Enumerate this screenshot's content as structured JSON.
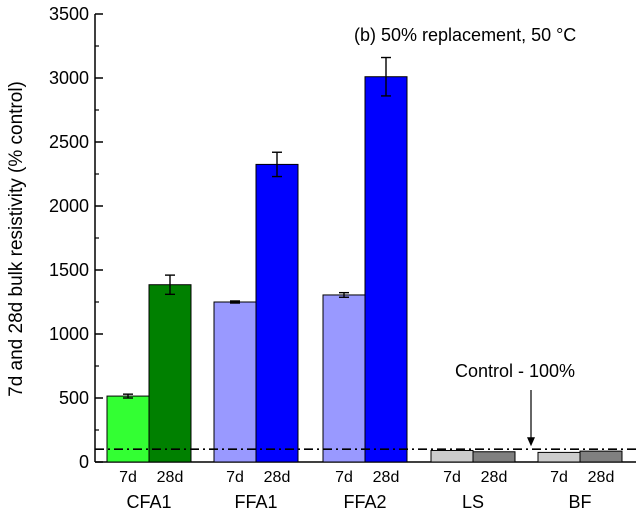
{
  "chart_data": {
    "type": "bar",
    "annotation_panel": "(b) 50% replacement, 50 °C",
    "ylabel": "7d and 28d bulk resistivity (% control)",
    "ylim": [
      0,
      3500
    ],
    "yticks": [
      0,
      500,
      1000,
      1500,
      2000,
      2500,
      3000,
      3500
    ],
    "grid": false,
    "groups": [
      {
        "name": "CFA1",
        "bars": [
          {
            "label": "7d",
            "value": 515,
            "error": 15,
            "color": "#33ff33"
          },
          {
            "label": "28d",
            "value": 1385,
            "error": 75,
            "color": "#008000"
          }
        ]
      },
      {
        "name": "FFA1",
        "bars": [
          {
            "label": "7d",
            "value": 1250,
            "error": 8,
            "color": "#9999ff"
          },
          {
            "label": "28d",
            "value": 2325,
            "error": 95,
            "color": "#0000ff"
          }
        ]
      },
      {
        "name": "FFA2",
        "bars": [
          {
            "label": "7d",
            "value": 1305,
            "error": 18,
            "color": "#9999ff"
          },
          {
            "label": "28d",
            "value": 3010,
            "error": 150,
            "color": "#0000ff"
          }
        ]
      },
      {
        "name": "LS",
        "bars": [
          {
            "label": "7d",
            "value": 90,
            "error": 0,
            "color": "#cccccc"
          },
          {
            "label": "28d",
            "value": 80,
            "error": 0,
            "color": "#808080"
          }
        ]
      },
      {
        "name": "BF",
        "bars": [
          {
            "label": "7d",
            "value": 75,
            "error": 0,
            "color": "#cccccc"
          },
          {
            "label": "28d",
            "value": 85,
            "error": 0,
            "color": "#808080"
          }
        ]
      }
    ],
    "reference_line": {
      "label": "Control - 100%",
      "value": 100,
      "style": "dash-dot"
    }
  }
}
